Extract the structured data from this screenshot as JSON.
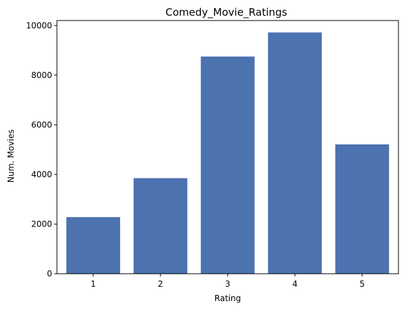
{
  "chart_data": {
    "type": "bar",
    "title": "Comedy_Movie_Ratings",
    "xlabel": "Rating",
    "ylabel": "Num. Movies",
    "categories": [
      "1",
      "2",
      "3",
      "4",
      "5"
    ],
    "values": [
      2280,
      3850,
      8750,
      9720,
      5210
    ],
    "ylim": [
      0,
      10200
    ],
    "yticks": [
      0,
      2000,
      4000,
      6000,
      8000,
      10000
    ],
    "ytick_labels": [
      "0",
      "2000",
      "4000",
      "6000",
      "8000",
      "10000"
    ],
    "grid": false,
    "legend": "none",
    "bar_color": "#4c72b0"
  }
}
